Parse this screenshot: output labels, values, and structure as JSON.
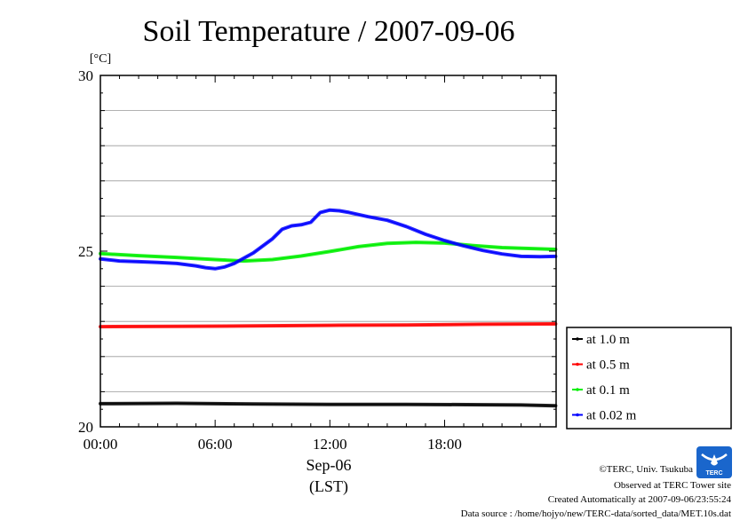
{
  "chart_data": {
    "type": "line",
    "title": "Soil Temperature / 2007-09-06",
    "ylabel": "[°C]",
    "xlabel_date": "Sep-06",
    "xlabel_tz": "(LST)",
    "xlim_hours": [
      0,
      23.83
    ],
    "ylim": [
      20,
      30
    ],
    "yticks": [
      {
        "value": 20,
        "label": "20"
      },
      {
        "value": 25,
        "label": "25"
      },
      {
        "value": 30,
        "label": "30"
      }
    ],
    "ygrid_values": [
      21,
      22,
      23,
      24,
      26,
      27,
      28,
      29
    ],
    "xticks": [
      {
        "value": 0,
        "label": "00:00"
      },
      {
        "value": 6,
        "label": "06:00"
      },
      {
        "value": 12,
        "label": "12:00"
      },
      {
        "value": 18,
        "label": "18:00"
      }
    ],
    "grid": true,
    "legend_position": "bottom-right outside",
    "series": [
      {
        "name": "at 1.0 m",
        "color": "#000000",
        "x": [
          0,
          4,
          8,
          12,
          16,
          20,
          22,
          23.8
        ],
        "y": [
          20.66,
          20.67,
          20.65,
          20.64,
          20.64,
          20.63,
          20.62,
          20.6
        ]
      },
      {
        "name": "at 0.5 m",
        "color": "#ff0000",
        "x": [
          0,
          4,
          8,
          12,
          16,
          20,
          23.8
        ],
        "y": [
          22.85,
          22.86,
          22.87,
          22.89,
          22.9,
          22.92,
          22.93
        ]
      },
      {
        "name": "at 0.1 m",
        "color": "#00ee00",
        "x": [
          0,
          2,
          4,
          6,
          7.5,
          9,
          10.5,
          12,
          13.5,
          15,
          16.5,
          18,
          19.5,
          21,
          23.8
        ],
        "y": [
          24.93,
          24.87,
          24.82,
          24.76,
          24.72,
          24.76,
          24.86,
          24.99,
          25.13,
          25.22,
          25.25,
          25.23,
          25.16,
          25.1,
          25.05
        ]
      },
      {
        "name": "at 0.02 m",
        "color": "#0000ff",
        "x": [
          0,
          1,
          2,
          3,
          4,
          5,
          5.5,
          6,
          6.5,
          7,
          8,
          9,
          9.5,
          10,
          10.5,
          11,
          11.5,
          12,
          12.5,
          13,
          14,
          15,
          16,
          17,
          18,
          19,
          20,
          21,
          22,
          23,
          23.8
        ],
        "y": [
          24.78,
          24.72,
          24.7,
          24.68,
          24.65,
          24.58,
          24.53,
          24.5,
          24.55,
          24.65,
          24.95,
          25.35,
          25.62,
          25.72,
          25.75,
          25.82,
          26.1,
          26.17,
          26.15,
          26.1,
          25.98,
          25.88,
          25.7,
          25.48,
          25.3,
          25.15,
          25.02,
          24.92,
          24.85,
          24.84,
          24.85
        ]
      }
    ]
  },
  "credits": {
    "copyright": "©TERC, Univ. Tsukuba",
    "observed": "Observed at TERC Tower site",
    "created": "Created Automatically at 2007-09-06/23:55:24",
    "source": "Data source : /home/hojyo/new/TERC-data/sorted_data/MET.10s.dat"
  },
  "logo": {
    "text": "TERC",
    "color": "#1a66cc"
  }
}
